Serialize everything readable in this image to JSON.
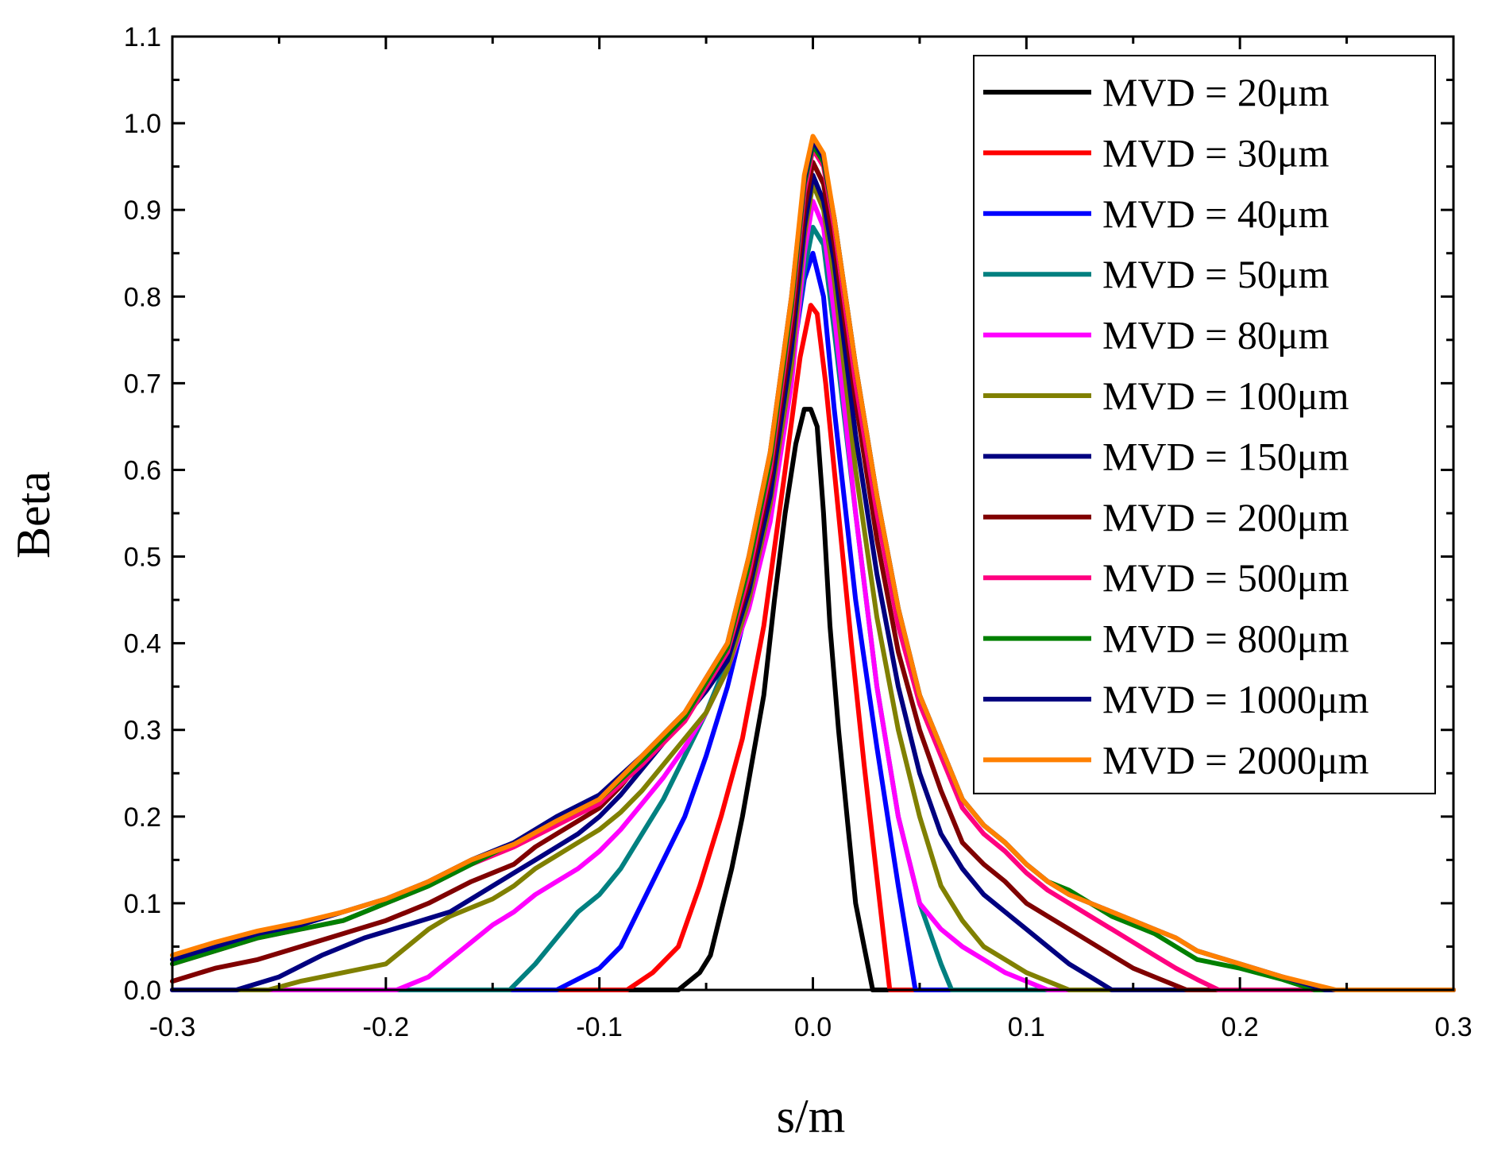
{
  "chart_data": {
    "type": "line",
    "title": "",
    "xlabel": "s/m",
    "ylabel": "Beta",
    "xlim": [
      -0.3,
      0.3
    ],
    "ylim": [
      0.0,
      1.1
    ],
    "grid": false,
    "legend_position": "top-right",
    "x_ticks": [
      "-0.3",
      "-0.2",
      "-0.1",
      "0.0",
      "0.1",
      "0.2",
      "0.3"
    ],
    "y_ticks": [
      "0.0",
      "0.1",
      "0.2",
      "0.3",
      "0.4",
      "0.5",
      "0.6",
      "0.7",
      "0.8",
      "0.9",
      "1.0",
      "1.1"
    ],
    "series": [
      {
        "name": "MVD = 20μm",
        "color": "#000000",
        "x": [
          -0.3,
          -0.063,
          -0.058,
          -0.053,
          -0.048,
          -0.043,
          -0.038,
          -0.033,
          -0.028,
          -0.023,
          -0.018,
          -0.013,
          -0.008,
          -0.004,
          -0.001,
          0.002,
          0.005,
          0.008,
          0.012,
          0.016,
          0.02,
          0.024,
          0.028,
          0.3
        ],
        "y": [
          0,
          0,
          0.01,
          0.02,
          0.04,
          0.09,
          0.14,
          0.2,
          0.27,
          0.34,
          0.45,
          0.55,
          0.63,
          0.67,
          0.67,
          0.65,
          0.55,
          0.42,
          0.3,
          0.2,
          0.1,
          0.05,
          0,
          0
        ]
      },
      {
        "name": "MVD = 30μm",
        "color": "#ff0000",
        "x": [
          -0.3,
          -0.087,
          -0.075,
          -0.063,
          -0.053,
          -0.043,
          -0.033,
          -0.023,
          -0.013,
          -0.006,
          -0.001,
          0.002,
          0.006,
          0.012,
          0.018,
          0.024,
          0.03,
          0.036,
          0.3
        ],
        "y": [
          0,
          0,
          0.02,
          0.05,
          0.12,
          0.2,
          0.29,
          0.42,
          0.6,
          0.73,
          0.79,
          0.78,
          0.7,
          0.55,
          0.4,
          0.26,
          0.13,
          0,
          0
        ]
      },
      {
        "name": "MVD = 40μm",
        "color": "#0000ff",
        "x": [
          -0.3,
          -0.12,
          -0.1,
          -0.09,
          -0.08,
          -0.07,
          -0.06,
          -0.05,
          -0.04,
          -0.03,
          -0.02,
          -0.01,
          -0.004,
          0.0,
          0.005,
          0.01,
          0.02,
          0.03,
          0.04,
          0.048,
          0.3
        ],
        "y": [
          0,
          0,
          0.025,
          0.05,
          0.1,
          0.15,
          0.2,
          0.27,
          0.35,
          0.45,
          0.57,
          0.72,
          0.82,
          0.85,
          0.8,
          0.67,
          0.45,
          0.28,
          0.12,
          0,
          0
        ]
      },
      {
        "name": "MVD = 50μm",
        "color": "#008080",
        "x": [
          -0.3,
          -0.142,
          -0.13,
          -0.12,
          -0.11,
          -0.1,
          -0.09,
          -0.08,
          -0.07,
          -0.06,
          -0.05,
          -0.04,
          -0.03,
          -0.02,
          -0.01,
          -0.004,
          0.0,
          0.005,
          0.01,
          0.02,
          0.03,
          0.04,
          0.05,
          0.06,
          0.065,
          0.3
        ],
        "y": [
          0,
          0,
          0.03,
          0.06,
          0.09,
          0.11,
          0.14,
          0.18,
          0.22,
          0.27,
          0.32,
          0.38,
          0.46,
          0.57,
          0.72,
          0.83,
          0.88,
          0.86,
          0.76,
          0.55,
          0.35,
          0.2,
          0.1,
          0.03,
          0,
          0
        ]
      },
      {
        "name": "MVD = 80μm",
        "color": "#ff00ff",
        "x": [
          -0.3,
          -0.195,
          -0.18,
          -0.17,
          -0.16,
          -0.15,
          -0.14,
          -0.13,
          -0.12,
          -0.11,
          -0.1,
          -0.09,
          -0.08,
          -0.07,
          -0.06,
          -0.05,
          -0.04,
          -0.03,
          -0.02,
          -0.01,
          -0.004,
          0.0,
          0.005,
          0.01,
          0.02,
          0.03,
          0.04,
          0.05,
          0.06,
          0.07,
          0.08,
          0.09,
          0.1,
          0.11,
          0.3
        ],
        "y": [
          0,
          0,
          0.015,
          0.035,
          0.055,
          0.075,
          0.09,
          0.11,
          0.125,
          0.14,
          0.16,
          0.185,
          0.215,
          0.245,
          0.28,
          0.32,
          0.37,
          0.44,
          0.54,
          0.7,
          0.85,
          0.91,
          0.88,
          0.78,
          0.55,
          0.35,
          0.2,
          0.1,
          0.07,
          0.05,
          0.035,
          0.02,
          0.01,
          0,
          0
        ]
      },
      {
        "name": "MVD = 100μm",
        "color": "#808000",
        "x": [
          -0.3,
          -0.255,
          -0.24,
          -0.22,
          -0.2,
          -0.19,
          -0.18,
          -0.17,
          -0.16,
          -0.15,
          -0.14,
          -0.13,
          -0.12,
          -0.11,
          -0.1,
          -0.09,
          -0.08,
          -0.07,
          -0.06,
          -0.05,
          -0.04,
          -0.03,
          -0.02,
          -0.01,
          -0.004,
          0.0,
          0.005,
          0.01,
          0.02,
          0.03,
          0.04,
          0.05,
          0.06,
          0.07,
          0.08,
          0.09,
          0.1,
          0.11,
          0.12,
          0.3
        ],
        "y": [
          0,
          0,
          0.01,
          0.02,
          0.03,
          0.05,
          0.07,
          0.085,
          0.095,
          0.105,
          0.12,
          0.14,
          0.155,
          0.17,
          0.185,
          0.205,
          0.23,
          0.26,
          0.29,
          0.32,
          0.37,
          0.45,
          0.56,
          0.72,
          0.87,
          0.93,
          0.9,
          0.82,
          0.6,
          0.43,
          0.3,
          0.2,
          0.12,
          0.08,
          0.05,
          0.035,
          0.02,
          0.01,
          0,
          0
        ]
      },
      {
        "name": "MVD = 150μm",
        "color": "#000080",
        "x": [
          -0.3,
          -0.27,
          -0.25,
          -0.23,
          -0.21,
          -0.19,
          -0.17,
          -0.16,
          -0.15,
          -0.14,
          -0.13,
          -0.12,
          -0.11,
          -0.1,
          -0.09,
          -0.08,
          -0.07,
          -0.06,
          -0.05,
          -0.04,
          -0.03,
          -0.02,
          -0.01,
          -0.004,
          0.0,
          0.005,
          0.01,
          0.02,
          0.03,
          0.04,
          0.05,
          0.06,
          0.07,
          0.08,
          0.09,
          0.1,
          0.11,
          0.12,
          0.13,
          0.14,
          0.3
        ],
        "y": [
          0,
          0,
          0.015,
          0.04,
          0.06,
          0.075,
          0.09,
          0.105,
          0.12,
          0.135,
          0.15,
          0.165,
          0.18,
          0.2,
          0.225,
          0.255,
          0.285,
          0.315,
          0.345,
          0.38,
          0.46,
          0.57,
          0.74,
          0.88,
          0.94,
          0.91,
          0.84,
          0.64,
          0.48,
          0.35,
          0.25,
          0.18,
          0.14,
          0.11,
          0.09,
          0.07,
          0.05,
          0.03,
          0.015,
          0,
          0
        ]
      },
      {
        "name": "MVD = 200μm",
        "color": "#800000",
        "x": [
          -0.3,
          -0.3,
          -0.28,
          -0.26,
          -0.24,
          -0.22,
          -0.2,
          -0.18,
          -0.16,
          -0.15,
          -0.14,
          -0.13,
          -0.12,
          -0.11,
          -0.1,
          -0.09,
          -0.08,
          -0.07,
          -0.06,
          -0.05,
          -0.04,
          -0.03,
          -0.02,
          -0.01,
          -0.004,
          0.0,
          0.005,
          0.01,
          0.02,
          0.03,
          0.04,
          0.05,
          0.06,
          0.07,
          0.08,
          0.09,
          0.1,
          0.11,
          0.12,
          0.13,
          0.14,
          0.15,
          0.16,
          0.175,
          0.3
        ],
        "y": [
          0.01,
          0.01,
          0.025,
          0.035,
          0.05,
          0.065,
          0.08,
          0.1,
          0.125,
          0.135,
          0.145,
          0.165,
          0.18,
          0.195,
          0.21,
          0.235,
          0.265,
          0.295,
          0.32,
          0.35,
          0.39,
          0.47,
          0.59,
          0.76,
          0.9,
          0.955,
          0.93,
          0.86,
          0.68,
          0.52,
          0.39,
          0.3,
          0.23,
          0.17,
          0.145,
          0.125,
          0.1,
          0.085,
          0.07,
          0.055,
          0.04,
          0.025,
          0.015,
          0,
          0
        ]
      },
      {
        "name": "MVD = 500μm",
        "color": "#ff0080",
        "x": [
          -0.3,
          -0.3,
          -0.28,
          -0.26,
          -0.24,
          -0.22,
          -0.2,
          -0.18,
          -0.16,
          -0.14,
          -0.12,
          -0.1,
          -0.08,
          -0.06,
          -0.04,
          -0.03,
          -0.02,
          -0.01,
          -0.004,
          0.0,
          0.005,
          0.01,
          0.02,
          0.03,
          0.04,
          0.05,
          0.06,
          0.07,
          0.08,
          0.09,
          0.1,
          0.11,
          0.12,
          0.13,
          0.14,
          0.15,
          0.16,
          0.17,
          0.18,
          0.19,
          0.3
        ],
        "y": [
          0.03,
          0.03,
          0.045,
          0.06,
          0.07,
          0.08,
          0.1,
          0.12,
          0.145,
          0.165,
          0.19,
          0.215,
          0.26,
          0.31,
          0.39,
          0.48,
          0.6,
          0.78,
          0.92,
          0.97,
          0.95,
          0.88,
          0.7,
          0.55,
          0.42,
          0.33,
          0.27,
          0.21,
          0.18,
          0.16,
          0.135,
          0.115,
          0.1,
          0.085,
          0.07,
          0.055,
          0.04,
          0.025,
          0.012,
          0,
          0
        ]
      },
      {
        "name": "MVD = 800μm",
        "color": "#008000",
        "x": [
          -0.3,
          -0.3,
          -0.28,
          -0.26,
          -0.24,
          -0.22,
          -0.2,
          -0.18,
          -0.16,
          -0.14,
          -0.12,
          -0.1,
          -0.08,
          -0.06,
          -0.04,
          -0.03,
          -0.02,
          -0.01,
          -0.004,
          0.0,
          0.005,
          0.01,
          0.02,
          0.03,
          0.04,
          0.05,
          0.06,
          0.07,
          0.08,
          0.09,
          0.1,
          0.11,
          0.12,
          0.13,
          0.14,
          0.15,
          0.16,
          0.17,
          0.18,
          0.2,
          0.22,
          0.235,
          0.3
        ],
        "y": [
          0.03,
          0.03,
          0.045,
          0.06,
          0.07,
          0.08,
          0.1,
          0.12,
          0.145,
          0.17,
          0.195,
          0.22,
          0.265,
          0.315,
          0.395,
          0.49,
          0.61,
          0.79,
          0.93,
          0.975,
          0.955,
          0.89,
          0.72,
          0.57,
          0.44,
          0.34,
          0.28,
          0.22,
          0.19,
          0.17,
          0.145,
          0.125,
          0.115,
          0.1,
          0.085,
          0.075,
          0.065,
          0.05,
          0.035,
          0.025,
          0.012,
          0,
          0
        ]
      },
      {
        "name": "MVD = 1000μm",
        "color": "#000080",
        "x": [
          -0.3,
          -0.3,
          -0.28,
          -0.26,
          -0.24,
          -0.22,
          -0.2,
          -0.18,
          -0.16,
          -0.14,
          -0.12,
          -0.1,
          -0.08,
          -0.06,
          -0.04,
          -0.03,
          -0.02,
          -0.01,
          -0.004,
          0.0,
          0.005,
          0.01,
          0.02,
          0.03,
          0.04,
          0.05,
          0.06,
          0.07,
          0.08,
          0.09,
          0.1,
          0.11,
          0.12,
          0.13,
          0.14,
          0.15,
          0.16,
          0.17,
          0.18,
          0.2,
          0.22,
          0.24,
          0.3
        ],
        "y": [
          0.035,
          0.035,
          0.05,
          0.065,
          0.075,
          0.09,
          0.105,
          0.125,
          0.15,
          0.17,
          0.2,
          0.225,
          0.27,
          0.32,
          0.4,
          0.5,
          0.62,
          0.8,
          0.935,
          0.98,
          0.96,
          0.89,
          0.72,
          0.57,
          0.44,
          0.34,
          0.28,
          0.22,
          0.19,
          0.17,
          0.145,
          0.125,
          0.11,
          0.1,
          0.09,
          0.08,
          0.07,
          0.06,
          0.045,
          0.03,
          0.015,
          0,
          0
        ]
      },
      {
        "name": "MVD = 2000μm",
        "color": "#ff8000",
        "x": [
          -0.3,
          -0.3,
          -0.28,
          -0.26,
          -0.24,
          -0.22,
          -0.2,
          -0.18,
          -0.16,
          -0.14,
          -0.12,
          -0.1,
          -0.08,
          -0.06,
          -0.04,
          -0.03,
          -0.02,
          -0.01,
          -0.004,
          0.0,
          0.005,
          0.01,
          0.02,
          0.03,
          0.04,
          0.05,
          0.06,
          0.07,
          0.08,
          0.09,
          0.1,
          0.11,
          0.12,
          0.13,
          0.14,
          0.15,
          0.16,
          0.17,
          0.18,
          0.2,
          0.22,
          0.245,
          0.3
        ],
        "y": [
          0.04,
          0.04,
          0.055,
          0.068,
          0.078,
          0.09,
          0.105,
          0.125,
          0.15,
          0.168,
          0.195,
          0.22,
          0.27,
          0.32,
          0.4,
          0.5,
          0.62,
          0.8,
          0.94,
          0.985,
          0.965,
          0.89,
          0.72,
          0.57,
          0.44,
          0.34,
          0.28,
          0.22,
          0.19,
          0.17,
          0.145,
          0.125,
          0.11,
          0.1,
          0.09,
          0.08,
          0.07,
          0.06,
          0.045,
          0.03,
          0.015,
          0,
          0
        ]
      }
    ]
  }
}
